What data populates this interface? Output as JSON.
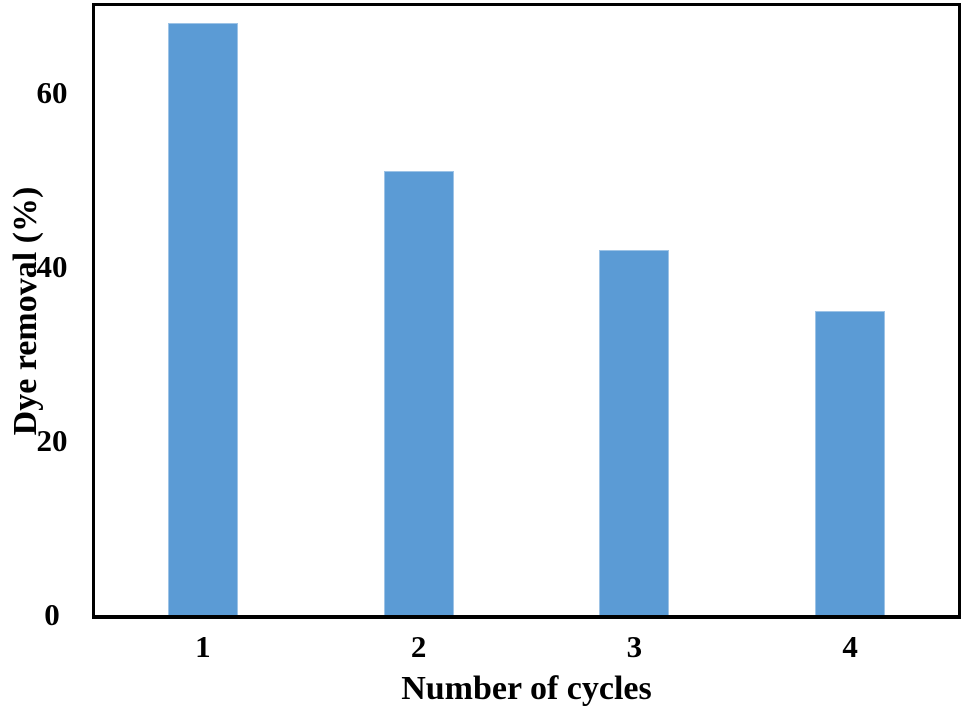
{
  "chart_data": {
    "type": "bar",
    "categories": [
      "1",
      "2",
      "3",
      "4"
    ],
    "values": [
      68,
      51,
      42,
      35
    ],
    "title": "",
    "xlabel": "Number of cycles",
    "ylabel": "Dye removal (%)",
    "ylim": [
      0,
      70
    ],
    "yticks": [
      0,
      20,
      40,
      60
    ],
    "grid": false,
    "legend": false,
    "bar_color": "#5B9BD5",
    "bar_border_color": "#9DC3E6",
    "axis_color": "#000000",
    "text_color": "#000000",
    "background_color": "#FFFFFF"
  }
}
